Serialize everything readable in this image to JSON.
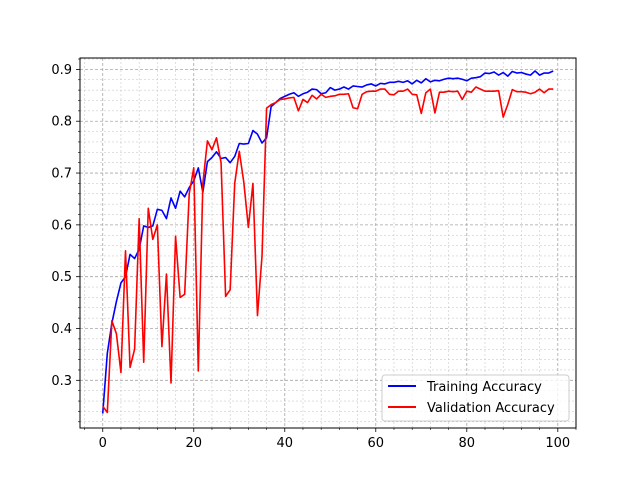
{
  "chart_data": {
    "type": "line",
    "title": "",
    "xlabel": "",
    "ylabel": "",
    "xlim": [
      -5,
      104
    ],
    "ylim": [
      0.208,
      0.922
    ],
    "xticks": [
      0,
      20,
      40,
      60,
      80,
      100
    ],
    "yticks": [
      0.3,
      0.4,
      0.5,
      0.6,
      0.7,
      0.8,
      0.9
    ],
    "xtick_labels": [
      "0",
      "20",
      "40",
      "60",
      "80",
      "100"
    ],
    "ytick_labels": [
      "0.3",
      "0.4",
      "0.5",
      "0.6",
      "0.7",
      "0.8",
      "0.9"
    ],
    "grid": "major and minor, dashed",
    "legend_position": "lower-right",
    "series": [
      {
        "name": "Training Accuracy",
        "color": "#0000ff",
        "x": [
          0,
          1,
          2,
          3,
          4,
          5,
          6,
          7,
          8,
          9,
          10,
          11,
          12,
          13,
          14,
          15,
          16,
          17,
          18,
          19,
          20,
          21,
          22,
          23,
          24,
          25,
          26,
          27,
          28,
          29,
          30,
          31,
          32,
          33,
          34,
          35,
          36,
          37,
          38,
          39,
          40,
          41,
          42,
          43,
          44,
          45,
          46,
          47,
          48,
          49,
          50,
          51,
          52,
          53,
          54,
          55,
          56,
          57,
          58,
          59,
          60,
          61,
          62,
          63,
          64,
          65,
          66,
          67,
          68,
          69,
          70,
          71,
          72,
          73,
          74,
          75,
          76,
          77,
          78,
          79,
          80,
          81,
          82,
          83,
          84,
          85,
          86,
          87,
          88,
          89,
          90,
          91,
          92,
          93,
          94,
          95,
          96,
          97,
          98,
          99
        ],
        "values": [
          0.236,
          0.352,
          0.41,
          0.452,
          0.488,
          0.5,
          0.543,
          0.535,
          0.553,
          0.598,
          0.595,
          0.598,
          0.63,
          0.628,
          0.612,
          0.652,
          0.632,
          0.665,
          0.654,
          0.672,
          0.685,
          0.71,
          0.663,
          0.722,
          0.73,
          0.741,
          0.728,
          0.73,
          0.72,
          0.732,
          0.757,
          0.756,
          0.757,
          0.782,
          0.775,
          0.758,
          0.768,
          0.828,
          0.836,
          0.844,
          0.848,
          0.852,
          0.855,
          0.848,
          0.853,
          0.856,
          0.862,
          0.861,
          0.853,
          0.855,
          0.865,
          0.86,
          0.862,
          0.866,
          0.862,
          0.868,
          0.867,
          0.866,
          0.87,
          0.872,
          0.868,
          0.873,
          0.872,
          0.875,
          0.875,
          0.877,
          0.875,
          0.878,
          0.872,
          0.879,
          0.874,
          0.882,
          0.876,
          0.879,
          0.878,
          0.881,
          0.883,
          0.882,
          0.883,
          0.881,
          0.878,
          0.883,
          0.884,
          0.886,
          0.893,
          0.892,
          0.895,
          0.889,
          0.894,
          0.887,
          0.896,
          0.893,
          0.894,
          0.891,
          0.889,
          0.897,
          0.889,
          0.893,
          0.893,
          0.897
        ]
      },
      {
        "name": "Validation Accuracy",
        "color": "#ff0000",
        "x": [
          0,
          1,
          2,
          3,
          4,
          5,
          6,
          7,
          8,
          9,
          10,
          11,
          12,
          13,
          14,
          15,
          16,
          17,
          18,
          19,
          20,
          21,
          22,
          23,
          24,
          25,
          26,
          27,
          28,
          29,
          30,
          31,
          32,
          33,
          34,
          35,
          36,
          37,
          38,
          39,
          40,
          41,
          42,
          43,
          44,
          45,
          46,
          47,
          48,
          49,
          50,
          51,
          52,
          53,
          54,
          55,
          56,
          57,
          58,
          59,
          60,
          61,
          62,
          63,
          64,
          65,
          66,
          67,
          68,
          69,
          70,
          71,
          72,
          73,
          74,
          75,
          76,
          77,
          78,
          79,
          80,
          81,
          82,
          83,
          84,
          85,
          86,
          87,
          88,
          89,
          90,
          91,
          92,
          93,
          94,
          95,
          96,
          97,
          98,
          99
        ],
        "values": [
          0.25,
          0.238,
          0.415,
          0.39,
          0.315,
          0.55,
          0.325,
          0.36,
          0.612,
          0.335,
          0.632,
          0.572,
          0.6,
          0.365,
          0.505,
          0.295,
          0.578,
          0.46,
          0.466,
          0.66,
          0.71,
          0.318,
          0.68,
          0.762,
          0.745,
          0.768,
          0.72,
          0.462,
          0.475,
          0.68,
          0.742,
          0.682,
          0.595,
          0.68,
          0.425,
          0.54,
          0.825,
          0.832,
          0.836,
          0.842,
          0.843,
          0.845,
          0.846,
          0.82,
          0.842,
          0.836,
          0.85,
          0.843,
          0.852,
          0.846,
          0.848,
          0.849,
          0.852,
          0.852,
          0.853,
          0.826,
          0.824,
          0.852,
          0.857,
          0.858,
          0.858,
          0.862,
          0.862,
          0.852,
          0.851,
          0.858,
          0.858,
          0.862,
          0.852,
          0.851,
          0.815,
          0.855,
          0.862,
          0.816,
          0.856,
          0.856,
          0.858,
          0.857,
          0.858,
          0.842,
          0.858,
          0.856,
          0.866,
          0.862,
          0.858,
          0.858,
          0.858,
          0.859,
          0.808,
          0.832,
          0.861,
          0.857,
          0.857,
          0.856,
          0.853,
          0.856,
          0.862,
          0.855,
          0.862,
          0.862
        ]
      }
    ]
  }
}
